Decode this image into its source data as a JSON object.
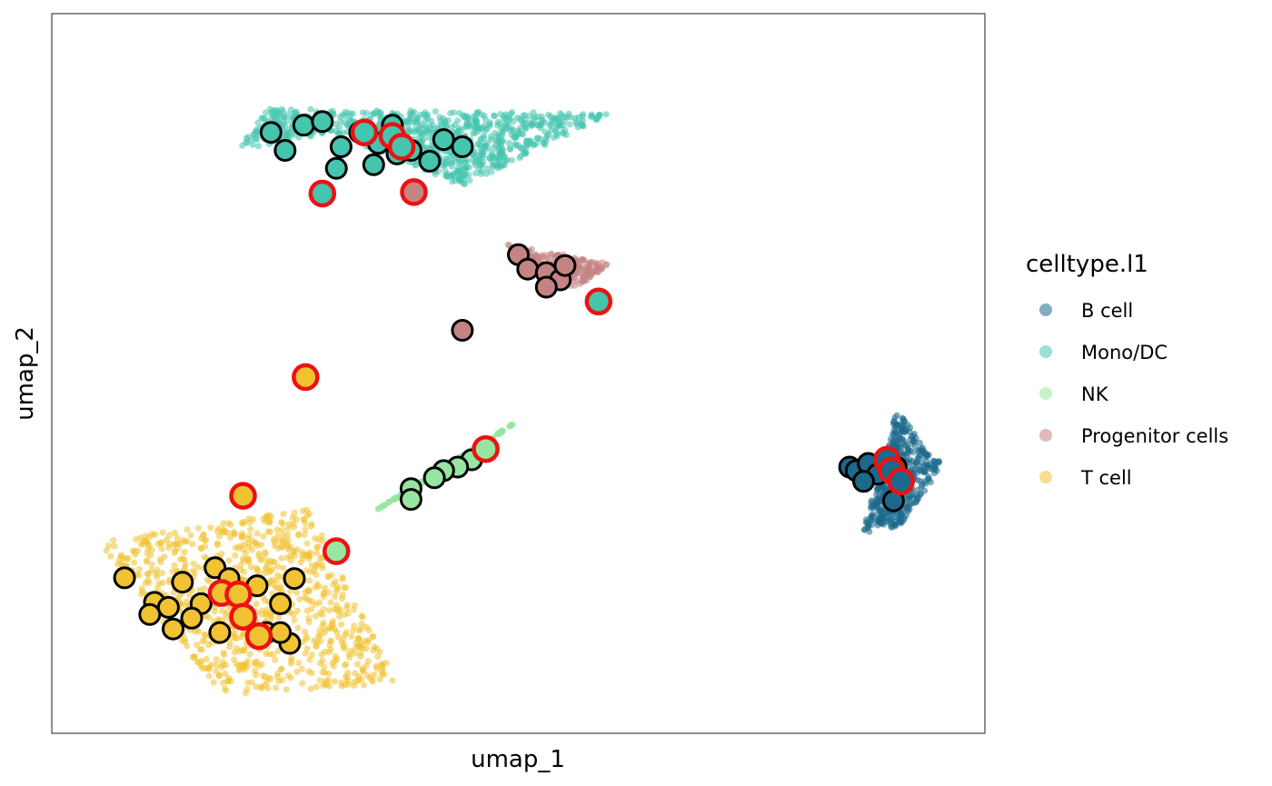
{
  "chart_data": {
    "type": "scatter",
    "title": "",
    "xlabel": "umap_1",
    "ylabel": "umap_2",
    "xlim": [
      0,
      100
    ],
    "ylim": [
      0,
      100
    ],
    "grid": false,
    "axis_ticks": false,
    "legend_position": "right",
    "legend": {
      "title": "celltype.l1",
      "entries": [
        {
          "name": "B cell",
          "color": "#1B6A8C"
        },
        {
          "name": "Mono/DC",
          "color": "#45C4AE"
        },
        {
          "name": "NK",
          "color": "#96E6A1"
        },
        {
          "name": "Progenitor cells",
          "color": "#C48484"
        },
        {
          "name": "T cell",
          "color": "#F1C232"
        }
      ]
    },
    "background_clusters": [
      {
        "series": "Mono/DC",
        "points": [
          [
            23,
            86.8
          ],
          [
            60,
            86.2
          ],
          [
            44,
            76
          ],
          [
            30,
            83.5
          ],
          [
            20,
            81
          ]
        ]
      },
      {
        "series": "Progenitor cells",
        "points": [
          [
            48,
            68.2
          ],
          [
            60,
            65.2
          ],
          [
            56,
            61.8
          ]
        ]
      },
      {
        "series": "NK",
        "points": [
          [
            34.5,
            30.8
          ],
          [
            44,
            38
          ],
          [
            50,
            43.5
          ]
        ]
      },
      {
        "series": "B cell",
        "points": [
          [
            86.8,
            27.8
          ],
          [
            90.5,
            44.8
          ],
          [
            95.5,
            37.3
          ],
          [
            91,
            28.8
          ]
        ]
      },
      {
        "series": "T cell",
        "points": [
          [
            5,
            26.5
          ],
          [
            27.5,
            31.3
          ],
          [
            37,
            7
          ],
          [
            18.5,
            5.2
          ]
        ]
      }
    ],
    "highlighted_cells": [
      {
        "x": 23.5,
        "y": 83.5,
        "series": "Mono/DC",
        "outline": "black"
      },
      {
        "x": 25,
        "y": 81,
        "series": "Mono/DC",
        "outline": "black"
      },
      {
        "x": 27,
        "y": 84.5,
        "series": "Mono/DC",
        "outline": "black"
      },
      {
        "x": 29,
        "y": 85,
        "series": "Mono/DC",
        "outline": "black"
      },
      {
        "x": 31,
        "y": 81.5,
        "series": "Mono/DC",
        "outline": "black"
      },
      {
        "x": 33,
        "y": 83.5,
        "series": "Mono/DC",
        "outline": "black"
      },
      {
        "x": 35,
        "y": 82,
        "series": "Mono/DC",
        "outline": "black"
      },
      {
        "x": 36.5,
        "y": 84.5,
        "series": "Mono/DC",
        "outline": "black"
      },
      {
        "x": 38.5,
        "y": 81,
        "series": "Mono/DC",
        "outline": "black"
      },
      {
        "x": 40.5,
        "y": 79.5,
        "series": "Mono/DC",
        "outline": "black"
      },
      {
        "x": 42,
        "y": 82.5,
        "series": "Mono/DC",
        "outline": "black"
      },
      {
        "x": 44,
        "y": 81.5,
        "series": "Mono/DC",
        "outline": "black"
      },
      {
        "x": 30.5,
        "y": 78.5,
        "series": "Mono/DC",
        "outline": "black"
      },
      {
        "x": 34.5,
        "y": 79,
        "series": "Mono/DC",
        "outline": "black"
      },
      {
        "x": 37,
        "y": 80.5,
        "series": "Mono/DC",
        "outline": "black"
      },
      {
        "x": 33.5,
        "y": 83.5,
        "series": "Mono/DC",
        "outline": "red"
      },
      {
        "x": 36.5,
        "y": 83,
        "series": "Mono/DC",
        "outline": "red"
      },
      {
        "x": 37.5,
        "y": 81.5,
        "series": "Mono/DC",
        "outline": "red"
      },
      {
        "x": 29,
        "y": 75,
        "series": "Mono/DC",
        "outline": "red"
      },
      {
        "x": 38.8,
        "y": 75.2,
        "series": "Progenitor cells",
        "outline": "red"
      },
      {
        "x": 50,
        "y": 66.5,
        "series": "Progenitor cells",
        "outline": "black"
      },
      {
        "x": 51,
        "y": 64.5,
        "series": "Progenitor cells",
        "outline": "black"
      },
      {
        "x": 53,
        "y": 64,
        "series": "Progenitor cells",
        "outline": "black"
      },
      {
        "x": 54.5,
        "y": 63,
        "series": "Progenitor cells",
        "outline": "black"
      },
      {
        "x": 55,
        "y": 65,
        "series": "Progenitor cells",
        "outline": "black"
      },
      {
        "x": 53,
        "y": 62,
        "series": "Progenitor cells",
        "outline": "black"
      },
      {
        "x": 44,
        "y": 56,
        "series": "Progenitor cells",
        "outline": "black"
      },
      {
        "x": 58.6,
        "y": 60,
        "series": "Mono/DC",
        "outline": "red"
      },
      {
        "x": 27.2,
        "y": 49.5,
        "series": "T cell",
        "outline": "red"
      },
      {
        "x": 46.5,
        "y": 39.5,
        "series": "NK",
        "outline": "red"
      },
      {
        "x": 45,
        "y": 38,
        "series": "NK",
        "outline": "black"
      },
      {
        "x": 43.5,
        "y": 37,
        "series": "NK",
        "outline": "black"
      },
      {
        "x": 42,
        "y": 36.5,
        "series": "NK",
        "outline": "black"
      },
      {
        "x": 41,
        "y": 35.5,
        "series": "NK",
        "outline": "black"
      },
      {
        "x": 38.5,
        "y": 34,
        "series": "NK",
        "outline": "black"
      },
      {
        "x": 38.5,
        "y": 32.5,
        "series": "NK",
        "outline": "black"
      },
      {
        "x": 30.5,
        "y": 25.3,
        "series": "NK",
        "outline": "red"
      },
      {
        "x": 20.5,
        "y": 33,
        "series": "T cell",
        "outline": "red"
      },
      {
        "x": 7.8,
        "y": 21.6,
        "series": "T cell",
        "outline": "black"
      },
      {
        "x": 11,
        "y": 18.2,
        "series": "T cell",
        "outline": "black"
      },
      {
        "x": 12.5,
        "y": 17.5,
        "series": "T cell",
        "outline": "black"
      },
      {
        "x": 14,
        "y": 21,
        "series": "T cell",
        "outline": "black"
      },
      {
        "x": 16,
        "y": 18,
        "series": "T cell",
        "outline": "black"
      },
      {
        "x": 17.5,
        "y": 23,
        "series": "T cell",
        "outline": "black"
      },
      {
        "x": 19,
        "y": 21.5,
        "series": "T cell",
        "outline": "black"
      },
      {
        "x": 20.5,
        "y": 16,
        "series": "T cell",
        "outline": "black"
      },
      {
        "x": 22,
        "y": 20.5,
        "series": "T cell",
        "outline": "black"
      },
      {
        "x": 23,
        "y": 14,
        "series": "T cell",
        "outline": "black"
      },
      {
        "x": 24.5,
        "y": 18,
        "series": "T cell",
        "outline": "black"
      },
      {
        "x": 25.5,
        "y": 12.5,
        "series": "T cell",
        "outline": "black"
      },
      {
        "x": 26,
        "y": 21.5,
        "series": "T cell",
        "outline": "black"
      },
      {
        "x": 13,
        "y": 14.5,
        "series": "T cell",
        "outline": "black"
      },
      {
        "x": 10.5,
        "y": 16.5,
        "series": "T cell",
        "outline": "black"
      },
      {
        "x": 15,
        "y": 16,
        "series": "T cell",
        "outline": "black"
      },
      {
        "x": 18,
        "y": 14,
        "series": "T cell",
        "outline": "black"
      },
      {
        "x": 24.5,
        "y": 14,
        "series": "T cell",
        "outline": "black"
      },
      {
        "x": 18.2,
        "y": 19.5,
        "series": "T cell",
        "outline": "red"
      },
      {
        "x": 20,
        "y": 19.3,
        "series": "T cell",
        "outline": "red"
      },
      {
        "x": 20.5,
        "y": 16.2,
        "series": "T cell",
        "outline": "red"
      },
      {
        "x": 22.2,
        "y": 13.5,
        "series": "T cell",
        "outline": "red"
      },
      {
        "x": 85.5,
        "y": 37,
        "series": "B cell",
        "outline": "black"
      },
      {
        "x": 86.2,
        "y": 36.5,
        "series": "B cell",
        "outline": "black"
      },
      {
        "x": 87.5,
        "y": 37.5,
        "series": "B cell",
        "outline": "black"
      },
      {
        "x": 88.5,
        "y": 36,
        "series": "B cell",
        "outline": "black"
      },
      {
        "x": 89.5,
        "y": 38,
        "series": "B cell",
        "outline": "black"
      },
      {
        "x": 90.5,
        "y": 37,
        "series": "B cell",
        "outline": "black"
      },
      {
        "x": 87,
        "y": 35,
        "series": "B cell",
        "outline": "black"
      },
      {
        "x": 90.2,
        "y": 32.3,
        "series": "B cell",
        "outline": "black"
      },
      {
        "x": 89.5,
        "y": 38,
        "series": "B cell",
        "outline": "red"
      },
      {
        "x": 90,
        "y": 36.5,
        "series": "B cell",
        "outline": "red"
      },
      {
        "x": 91,
        "y": 35,
        "series": "B cell",
        "outline": "red"
      }
    ]
  }
}
